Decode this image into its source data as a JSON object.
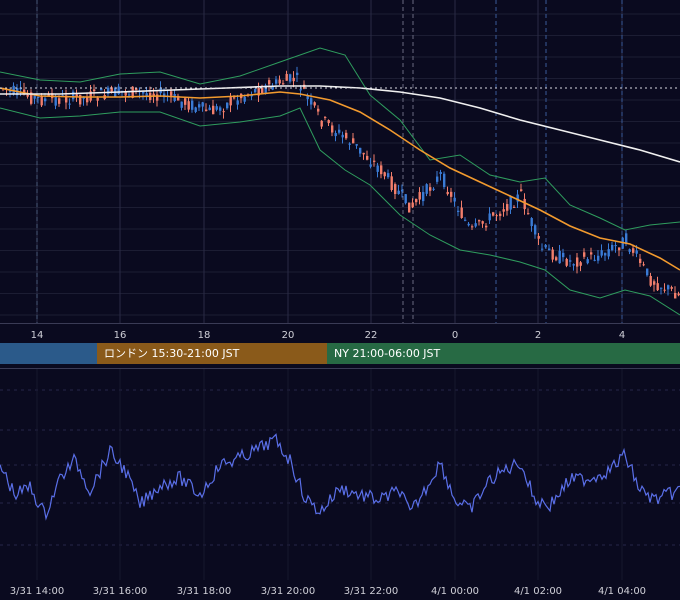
{
  "chart_data": [
    {
      "type": "candlestick",
      "indicators": [
        "Bollinger Bands",
        "moving average (orange)",
        "moving average (white)",
        "last price line (dotted)"
      ],
      "x_tick_labels": [
        "14",
        "16",
        "18",
        "20",
        "22",
        "0",
        "2",
        "4"
      ],
      "grid": true,
      "legend": "none",
      "colors": {
        "up": "#3a7bd5",
        "down": "#f27e6b",
        "band": "#2f9d5e",
        "ma_orange": "#f29a2e",
        "ma_white": "#f0f0f0",
        "background": "#0a0a1f",
        "grid": "#1f2035"
      }
    },
    {
      "type": "line",
      "x_tick_labels": [
        "3/31 14:00",
        "3/31 16:00",
        "3/31 18:00",
        "3/31 20:00",
        "3/31 22:00",
        "4/1 00:00",
        "4/1 02:00",
        "4/1 04:00"
      ],
      "grid": true,
      "legend": "none",
      "colors": {
        "line": "#5a6fe8"
      }
    }
  ],
  "sessions": [
    {
      "label": "",
      "color": "#2b5a8a"
    },
    {
      "label": "ロンドン 15:30-21:00 JST",
      "color": "#8a5a1a"
    },
    {
      "label": "NY 21:00-06:00 JST",
      "color": "#276a44"
    }
  ]
}
